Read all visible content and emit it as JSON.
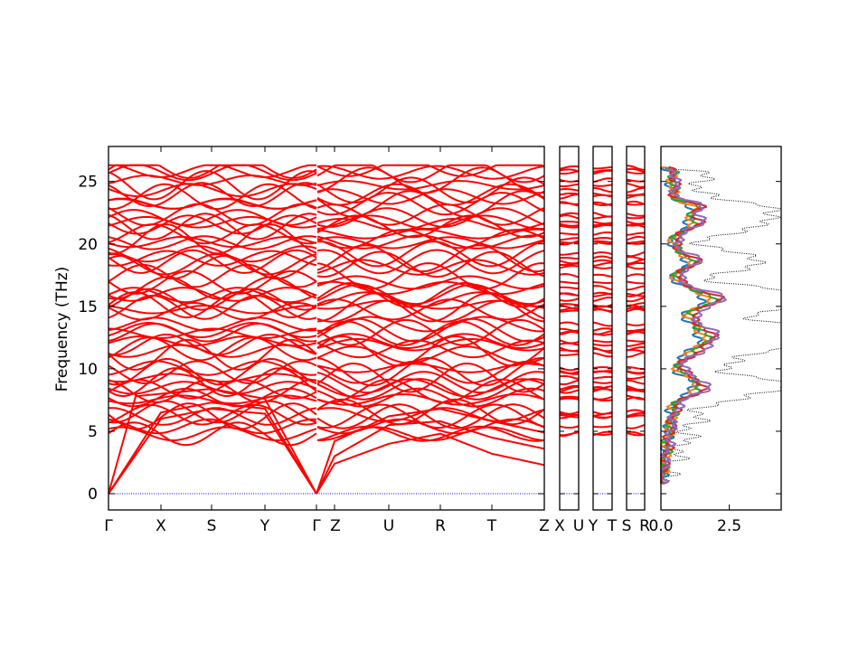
{
  "chart_data": {
    "type": "line",
    "title": "",
    "ylabel": "Frequency (THz)",
    "ylim": [
      -1.3,
      27.8
    ],
    "yticks": [
      "0",
      "5",
      "10",
      "15",
      "20",
      "25"
    ],
    "band_panels": [
      {
        "labels": [
          "Γ",
          "X",
          "S",
          "Y",
          "Γ"
        ],
        "break_after": "Z"
      },
      {
        "labels": [
          "Z",
          "U",
          "R",
          "T",
          "Z"
        ]
      },
      {
        "labels": [
          "X",
          "U"
        ]
      },
      {
        "labels": [
          "Y",
          "T"
        ]
      },
      {
        "labels": [
          "S",
          "R"
        ]
      }
    ],
    "dos_panel": {
      "xlim": [
        0.0,
        4.4
      ],
      "xticks": [
        "0.0",
        "2.5"
      ],
      "series_colors": [
        "#1f77b4",
        "#ff7f0e",
        "#2ca02c",
        "#d62728",
        "#9467bd"
      ],
      "total_color": "#000000"
    },
    "band_color": "#ff0000",
    "zero_line_color": "#0000ff",
    "band_count_approx": 60,
    "band_max_frequency": 26.3,
    "acoustic_end_frequencies": [
      4.2,
      6.5,
      7.6
    ]
  }
}
